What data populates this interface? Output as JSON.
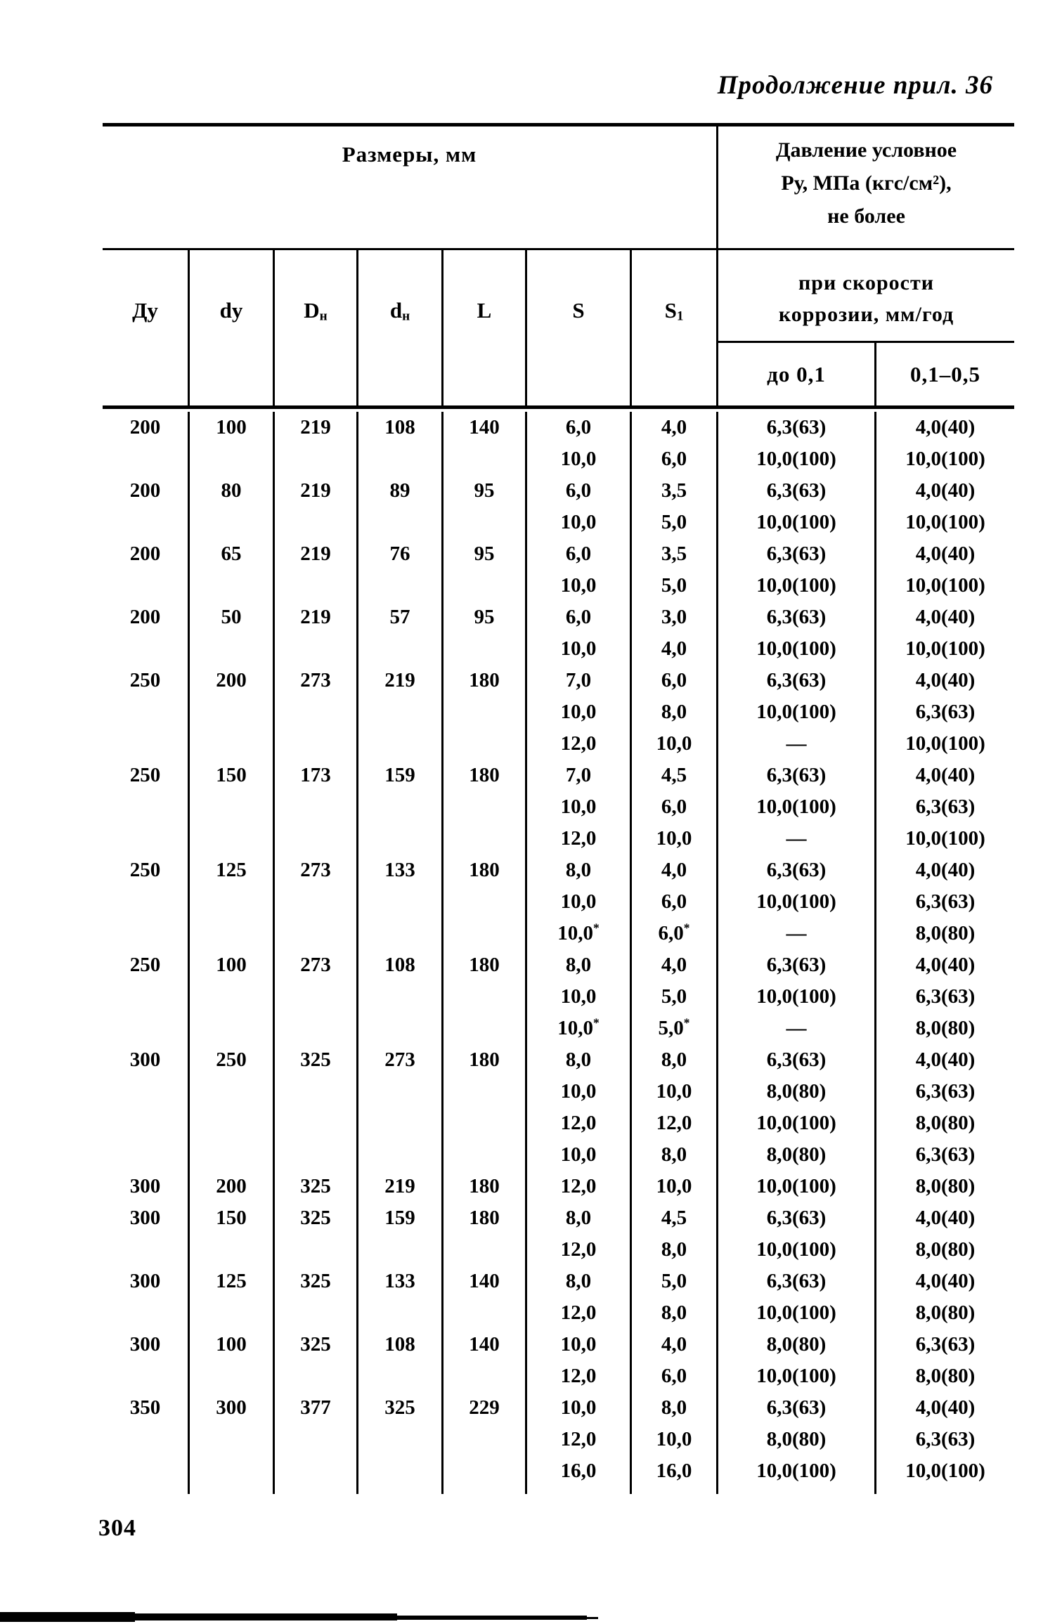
{
  "page": {
    "heading": "Продолжение прил. 36",
    "page_number": "304"
  },
  "table": {
    "sizes_title": "Размеры, мм",
    "pressure_title": [
      "Давление условное",
      "Ру, МПа (кгс/см²),",
      "не более"
    ],
    "corrosion_title": [
      "при скорости",
      "коррозии, мм/год"
    ],
    "corrosion_cols": [
      "до 0,1",
      "0,1–0,5"
    ],
    "columns": [
      {
        "label": "Ду",
        "sub": ""
      },
      {
        "label": "dy",
        "sub": ""
      },
      {
        "label": "D",
        "sub": "н"
      },
      {
        "label": "d",
        "sub": "н"
      },
      {
        "label": "L",
        "sub": ""
      },
      {
        "label": "S",
        "sub": ""
      },
      {
        "label": "S",
        "sub": "1"
      }
    ],
    "rows": [
      [
        "200",
        "100",
        "219",
        "108",
        "140",
        "6,0",
        "4,0",
        "6,3(63)",
        "4,0(40)"
      ],
      [
        "",
        "",
        "",
        "",
        "",
        "10,0",
        "6,0",
        "10,0(100)",
        "10,0(100)"
      ],
      [
        "200",
        "80",
        "219",
        "89",
        "95",
        "6,0",
        "3,5",
        "6,3(63)",
        "4,0(40)"
      ],
      [
        "",
        "",
        "",
        "",
        "",
        "10,0",
        "5,0",
        "10,0(100)",
        "10,0(100)"
      ],
      [
        "200",
        "65",
        "219",
        "76",
        "95",
        "6,0",
        "3,5",
        "6,3(63)",
        "4,0(40)"
      ],
      [
        "",
        "",
        "",
        "",
        "",
        "10,0",
        "5,0",
        "10,0(100)",
        "10,0(100)"
      ],
      [
        "200",
        "50",
        "219",
        "57",
        "95",
        "6,0",
        "3,0",
        "6,3(63)",
        "4,0(40)"
      ],
      [
        "",
        "",
        "",
        "",
        "",
        "10,0",
        "4,0",
        "10,0(100)",
        "10,0(100)"
      ],
      [
        "250",
        "200",
        "273",
        "219",
        "180",
        "7,0",
        "6,0",
        "6,3(63)",
        "4,0(40)"
      ],
      [
        "",
        "",
        "",
        "",
        "",
        "10,0",
        "8,0",
        "10,0(100)",
        "6,3(63)"
      ],
      [
        "",
        "",
        "",
        "",
        "",
        "12,0",
        "10,0",
        "—",
        "10,0(100)"
      ],
      [
        "250",
        "150",
        "173",
        "159",
        "180",
        "7,0",
        "4,5",
        "6,3(63)",
        "4,0(40)"
      ],
      [
        "",
        "",
        "",
        "",
        "",
        "10,0",
        "6,0",
        "10,0(100)",
        "6,3(63)"
      ],
      [
        "",
        "",
        "",
        "",
        "",
        "12,0",
        "10,0",
        "—",
        "10,0(100)"
      ],
      [
        "250",
        "125",
        "273",
        "133",
        "180",
        "8,0",
        "4,0",
        "6,3(63)",
        "4,0(40)"
      ],
      [
        "",
        "",
        "",
        "",
        "",
        "10,0",
        "6,0",
        "10,0(100)",
        "6,3(63)"
      ],
      [
        "",
        "",
        "",
        "",
        "",
        "10,0*",
        "6,0*",
        "—",
        "8,0(80)"
      ],
      [
        "250",
        "100",
        "273",
        "108",
        "180",
        "8,0",
        "4,0",
        "6,3(63)",
        "4,0(40)"
      ],
      [
        "",
        "",
        "",
        "",
        "",
        "10,0",
        "5,0",
        "10,0(100)",
        "6,3(63)"
      ],
      [
        "",
        "",
        "",
        "",
        "",
        "10,0*",
        "5,0*",
        "—",
        "8,0(80)"
      ],
      [
        "300",
        "250",
        "325",
        "273",
        "180",
        "8,0",
        "8,0",
        "6,3(63)",
        "4,0(40)"
      ],
      [
        "",
        "",
        "",
        "",
        "",
        "10,0",
        "10,0",
        "8,0(80)",
        "6,3(63)"
      ],
      [
        "",
        "",
        "",
        "",
        "",
        "12,0",
        "12,0",
        "10,0(100)",
        "8,0(80)"
      ],
      [
        "",
        "",
        "",
        "",
        "",
        "10,0",
        "8,0",
        "8,0(80)",
        "6,3(63)"
      ],
      [
        "300",
        "200",
        "325",
        "219",
        "180",
        "12,0",
        "10,0",
        "10,0(100)",
        "8,0(80)"
      ],
      [
        "300",
        "150",
        "325",
        "159",
        "180",
        "8,0",
        "4,5",
        "6,3(63)",
        "4,0(40)"
      ],
      [
        "",
        "",
        "",
        "",
        "",
        "12,0",
        "8,0",
        "10,0(100)",
        "8,0(80)"
      ],
      [
        "300",
        "125",
        "325",
        "133",
        "140",
        "8,0",
        "5,0",
        "6,3(63)",
        "4,0(40)"
      ],
      [
        "",
        "",
        "",
        "",
        "",
        "12,0",
        "8,0",
        "10,0(100)",
        "8,0(80)"
      ],
      [
        "300",
        "100",
        "325",
        "108",
        "140",
        "10,0",
        "4,0",
        "8,0(80)",
        "6,3(63)"
      ],
      [
        "",
        "",
        "",
        "",
        "",
        "12,0",
        "6,0",
        "10,0(100)",
        "8,0(80)"
      ],
      [
        "350",
        "300",
        "377",
        "325",
        "229",
        "10,0",
        "8,0",
        "6,3(63)",
        "4,0(40)"
      ],
      [
        "",
        "",
        "",
        "",
        "",
        "12,0",
        "10,0",
        "8,0(80)",
        "6,3(63)"
      ],
      [
        "",
        "",
        "",
        "",
        "",
        "16,0",
        "16,0",
        "10,0(100)",
        "10,0(100)"
      ]
    ]
  }
}
